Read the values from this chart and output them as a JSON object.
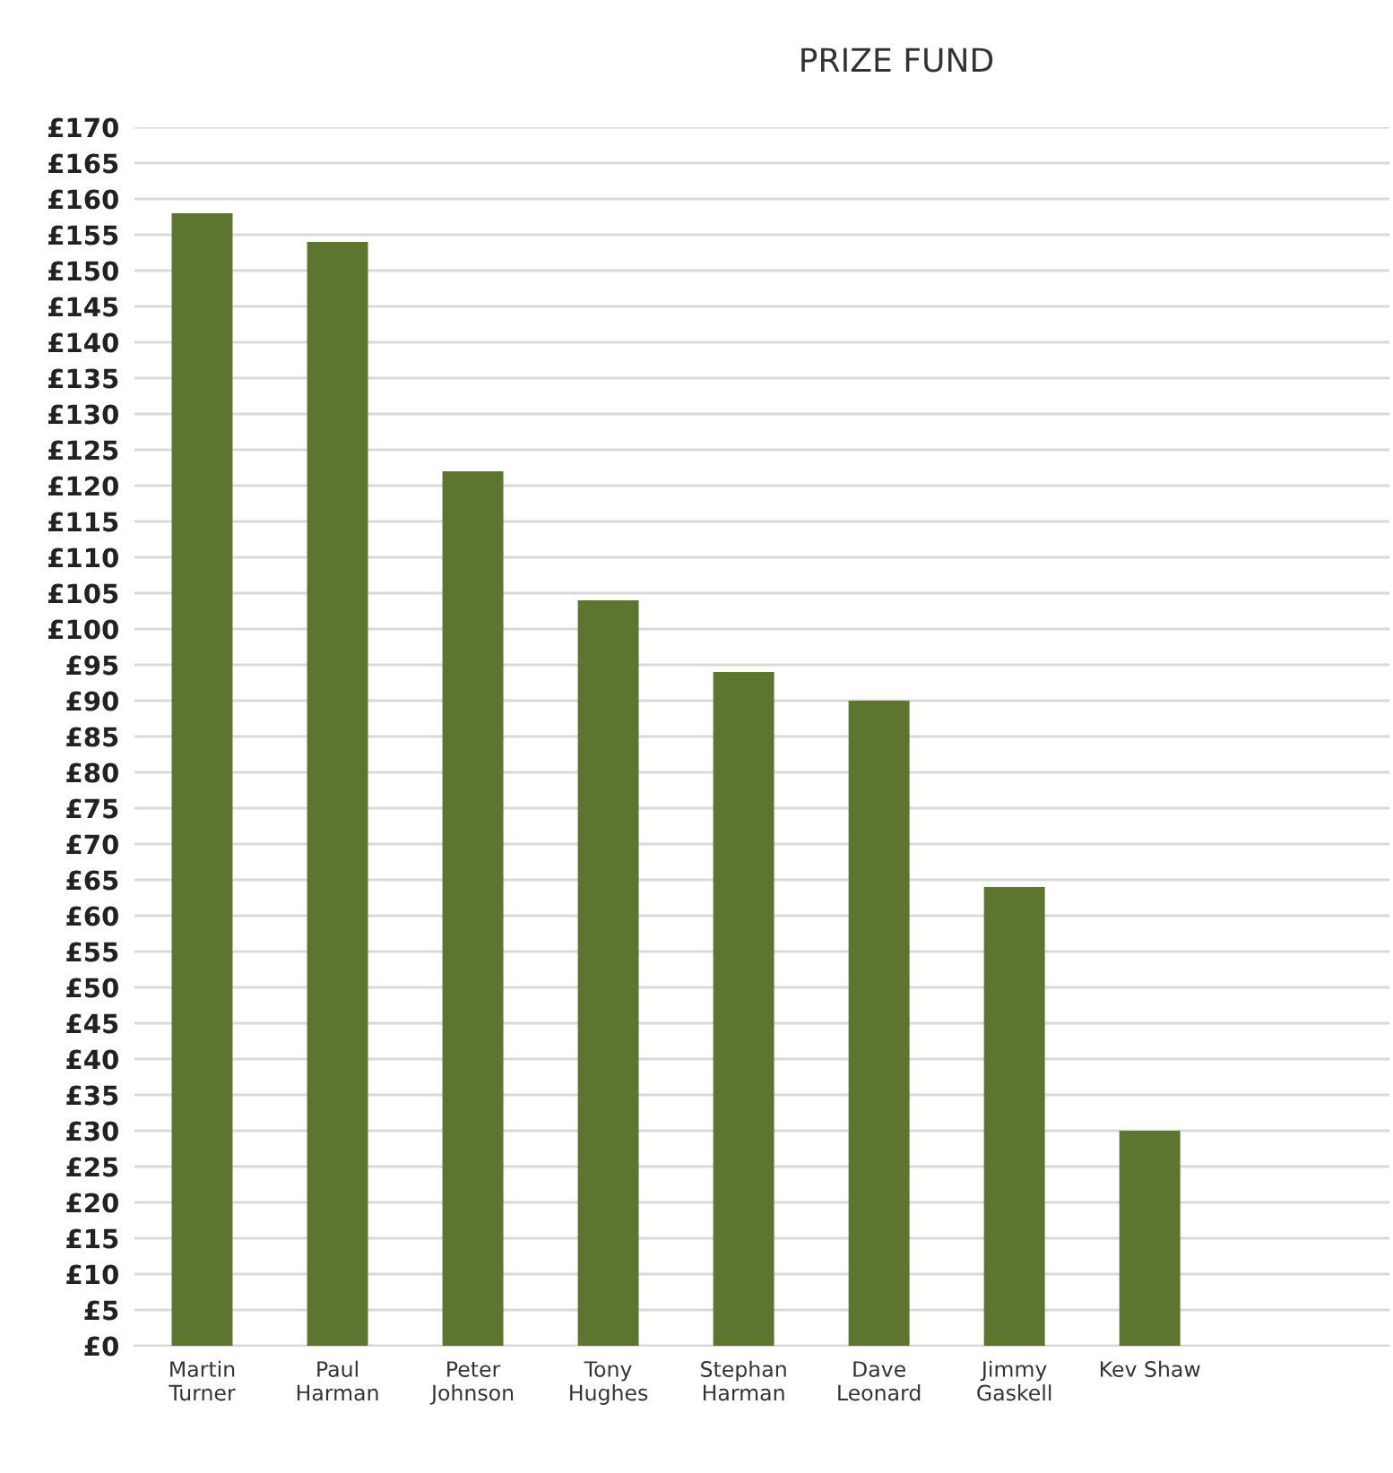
{
  "chart_data": {
    "type": "bar",
    "title": "PRIZE FUND",
    "categories": [
      "Martin\nTurner",
      "Paul\nHarman",
      "Peter\nJohnson",
      "Tony\nHughes",
      "Stephan\nHarman",
      "Dave\nLeonard",
      "Jimmy\nGaskell",
      "Kev Shaw"
    ],
    "values": [
      158,
      154,
      122,
      104,
      94,
      90,
      64,
      30
    ],
    "color": "#5e7530",
    "ylim": [
      0,
      170
    ],
    "yticks": [
      {
        "value": 0,
        "label": "£0"
      },
      {
        "value": 5,
        "label": "£5"
      },
      {
        "value": 10,
        "label": "£10"
      },
      {
        "value": 15,
        "label": "£15"
      },
      {
        "value": 20,
        "label": "£20"
      },
      {
        "value": 25,
        "label": "£25"
      },
      {
        "value": 30,
        "label": "£30"
      },
      {
        "value": 35,
        "label": "£35"
      },
      {
        "value": 40,
        "label": "£40"
      },
      {
        "value": 45,
        "label": "£45"
      },
      {
        "value": 50,
        "label": "£50"
      },
      {
        "value": 55,
        "label": "£55"
      },
      {
        "value": 60,
        "label": "£60"
      },
      {
        "value": 65,
        "label": "£65"
      },
      {
        "value": 70,
        "label": "£70"
      },
      {
        "value": 75,
        "label": "£75"
      },
      {
        "value": 80,
        "label": "£80"
      },
      {
        "value": 85,
        "label": "£85"
      },
      {
        "value": 90,
        "label": "£90"
      },
      {
        "value": 95,
        "label": "£95"
      },
      {
        "value": 100,
        "label": "£100"
      },
      {
        "value": 105,
        "label": "£105"
      },
      {
        "value": 110,
        "label": "£110"
      },
      {
        "value": 115,
        "label": "£115"
      },
      {
        "value": 120,
        "label": "£120"
      },
      {
        "value": 125,
        "label": "£125"
      },
      {
        "value": 130,
        "label": "£130"
      },
      {
        "value": 135,
        "label": "£135"
      },
      {
        "value": 140,
        "label": "£140"
      },
      {
        "value": 145,
        "label": "£145"
      },
      {
        "value": 150,
        "label": "£150"
      },
      {
        "value": 155,
        "label": "£155"
      },
      {
        "value": 160,
        "label": "£160"
      },
      {
        "value": 165,
        "label": "£165"
      },
      {
        "value": 170,
        "label": "£170"
      }
    ],
    "grid": "y"
  }
}
